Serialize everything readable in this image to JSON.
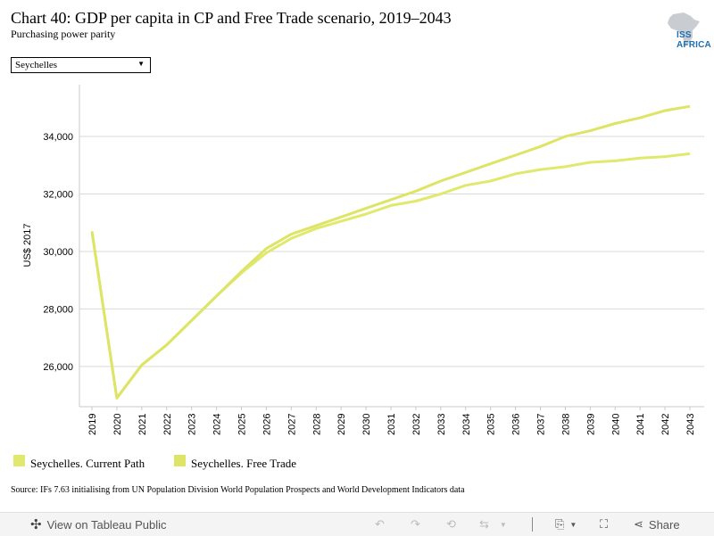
{
  "header": {
    "title": "Chart 40: GDP per capita in CP and Free Trade scenario, 2019–2043",
    "subtitle": "Purchasing power parity",
    "logo_text": "ISS AFRICA"
  },
  "filter": {
    "selected": "Seychelles"
  },
  "chart_data": {
    "type": "line",
    "x": [
      2019,
      2020,
      2021,
      2022,
      2023,
      2024,
      2025,
      2026,
      2027,
      2028,
      2029,
      2030,
      2031,
      2032,
      2033,
      2034,
      2035,
      2036,
      2037,
      2038,
      2039,
      2040,
      2041,
      2042,
      2043
    ],
    "series": [
      {
        "name": "Seychelles. Current Path",
        "color": "#e0e96e",
        "values": [
          30700,
          24900,
          26050,
          26750,
          27600,
          28450,
          29250,
          29950,
          30450,
          30800,
          31050,
          31300,
          31600,
          31750,
          32000,
          32300,
          32450,
          32700,
          32850,
          32950,
          33100,
          33150,
          33250,
          33300,
          33400
        ]
      },
      {
        "name": "Seychelles. Free Trade",
        "color": "#dde466",
        "values": [
          30700,
          24900,
          26050,
          26750,
          27600,
          28450,
          29300,
          30100,
          30600,
          30900,
          31200,
          31500,
          31800,
          32100,
          32450,
          32750,
          33050,
          33350,
          33650,
          34000,
          34200,
          34450,
          34650,
          34900,
          35050
        ]
      }
    ],
    "ylabel": "US$ 2017",
    "xlabel": "",
    "yticks": [
      26000,
      28000,
      30000,
      32000,
      34000
    ],
    "ytick_labels": [
      "26,000",
      "28,000",
      "30,000",
      "32,000",
      "34,000"
    ],
    "ylim": [
      24600,
      35800
    ],
    "grid": true,
    "legend": "bottom-left"
  },
  "source": "Source: IFs 7.63 initialising from UN Population Division World Population Prospects and World Development Indicators data",
  "toolbar": {
    "view_label": "View on Tableau Public",
    "share_label": "Share"
  }
}
